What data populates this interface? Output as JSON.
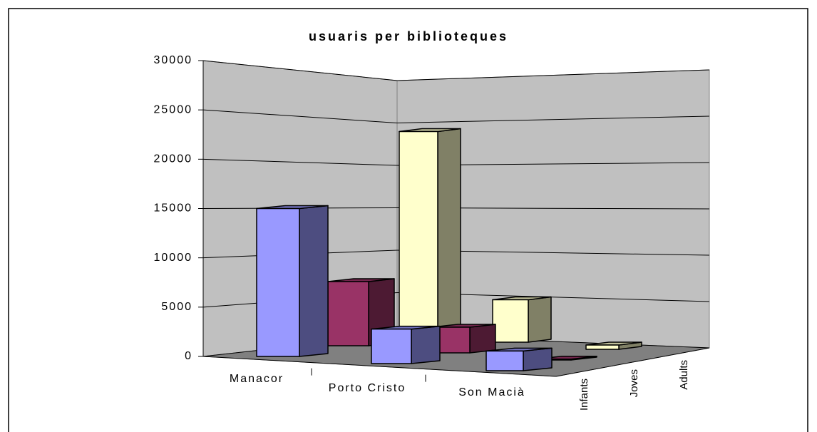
{
  "chart_data": {
    "type": "bar3d",
    "title": "usuaris per biblioteques",
    "categories": [
      "Manacor",
      "Porto Cristo",
      "Son Macià"
    ],
    "series": [
      {
        "name": "Infants",
        "color": "#9999ff",
        "values": [
          15000,
          3500,
          2000
        ]
      },
      {
        "name": "Joves",
        "color": "#993366",
        "values": [
          7000,
          2800,
          100
        ]
      },
      {
        "name": "Adults",
        "color": "#ffffcc",
        "values": [
          24000,
          5000,
          500
        ]
      }
    ],
    "ylim": [
      0,
      30000
    ],
    "yticks": [
      0,
      5000,
      10000,
      15000,
      20000,
      25000,
      30000
    ],
    "grid": true
  }
}
